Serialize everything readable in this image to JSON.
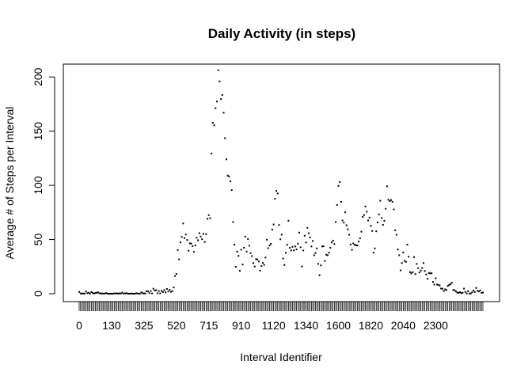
{
  "chart_data": {
    "type": "scatter",
    "title": "Daily Activity (in steps)",
    "xlabel": "Interval Identifier",
    "ylabel": "Average # of Steps per Interval",
    "x_ticks": [
      "0",
      "130",
      "325",
      "520",
      "715",
      "910",
      "1120",
      "1340",
      "1600",
      "1820",
      "2040",
      "2300"
    ],
    "y_ticks": [
      0,
      50,
      100,
      150,
      200
    ],
    "ylim": [
      0,
      206
    ],
    "grid": false,
    "legend": "none",
    "point_color": "#000000",
    "series": [
      {
        "values": [
          1.7,
          0.3,
          0.1,
          0.2,
          0.1,
          2.1,
          0.5,
          0.9,
          0,
          1.5,
          0.8,
          0.1,
          0.7,
          0.9,
          1.3,
          0.3,
          0.3,
          0.2,
          0.1,
          0.2,
          0.6,
          0,
          0,
          0,
          0.1,
          0,
          0.3,
          0.2,
          0.4,
          0,
          0.4,
          0.2,
          1.1,
          0.1,
          0.2,
          0.5,
          0.1,
          0,
          0.1,
          0.2,
          0,
          0,
          0.3,
          0.4,
          0,
          0,
          1.3,
          0.4,
          0.3,
          0.2,
          2.3,
          2.1,
          0.6,
          2.5,
          0.2,
          4.6,
          2.9,
          3.3,
          0.4,
          2.5,
          0.3,
          2.6,
          1.5,
          3.3,
          1.3,
          4.4,
          2.1,
          3.6,
          1.7,
          2.4,
          5.8,
          16.2,
          18.2,
          40.3,
          31.7,
          47.4,
          52.4,
          64.8,
          51.4,
          54.6,
          49.6,
          39.7,
          46.4,
          46.3,
          43.9,
          38.6,
          44.5,
          51.6,
          49.3,
          55.9,
          52.7,
          50.3,
          55.2,
          47.7,
          55,
          69.1,
          72.5,
          69.7,
          129.4,
          157.8,
          155.4,
          171.2,
          177.3,
          206.2,
          195.9,
          179.6,
          183.4,
          167,
          143.5,
          124,
          109.1,
          108.2,
          103.7,
          95.6,
          66.2,
          45.2,
          24.8,
          38.8,
          34.9,
          21.1,
          40.6,
          26.9,
          42.4,
          52.7,
          38.9,
          50.5,
          44.3,
          37.4,
          34.7,
          28.3,
          25.1,
          31.9,
          31.6,
          29.7,
          21.3,
          25.5,
          28.4,
          26.5,
          33.4,
          49.8,
          42,
          44.6,
          46,
          59.2,
          63.9,
          87.6,
          94.9,
          92.5,
          63.4,
          50.2,
          54.5,
          32.4,
          26.5,
          37.7,
          45.1,
          67.3,
          42.3,
          39.9,
          43.3,
          40,
          43.6,
          40.9,
          46.2,
          56.4,
          42.8,
          25.1,
          39.9,
          53.5,
          47.3,
          60.8,
          55.8,
          51.9,
          43.6,
          48.7,
          35.5,
          37.5,
          41.8,
          27.5,
          17.1,
          26.1,
          43.6,
          43.8,
          30.2,
          36,
          35.5,
          37.8,
          42.4,
          47.4,
          49,
          45.8,
          66.2,
          81.9,
          99.5,
          103.1,
          84.8,
          67.6,
          65.6,
          75.1,
          63.2,
          59.4,
          54.4,
          45.4,
          40.5,
          46.4,
          45.1,
          44.7,
          44.6,
          48.2,
          51.1,
          57.2,
          70.9,
          72.5,
          80.5,
          75.7,
          67.6,
          70.2,
          62.6,
          57.9,
          37.9,
          41.8,
          57.6,
          65.7,
          73.2,
          85.8,
          69.8,
          63.6,
          67.2,
          78.4,
          99.1,
          86.8,
          85.5,
          86.4,
          84.8,
          77.8,
          58.6,
          54.4,
          40.9,
          35.5,
          21.5,
          28.3,
          38.1,
          30.3,
          29.4,
          45.3,
          34.1,
          19.9,
          18.8,
          19.9,
          33.8,
          18.1,
          27.5,
          23.6,
          19.6,
          21.4,
          23.7,
          28.3,
          21,
          17.8,
          13.8,
          19.1,
          18.7,
          18.9,
          10.9,
          8.4,
          14.2,
          8.5,
          8.2,
          7.6,
          4.8,
          4.6,
          2.5,
          4.1,
          3.4,
          7.1,
          8.1,
          8.8,
          10.1,
          3.4,
          3.3,
          2.1,
          1.1,
          0.8,
          1.4,
          0.5,
          0.9,
          4.7,
          1.7,
          0.3,
          2.3,
          0.2,
          0.2,
          1.3,
          3,
          1.6,
          5.3,
          2.7,
          2.1,
          3.1,
          0.8,
          1.1
        ]
      }
    ]
  }
}
